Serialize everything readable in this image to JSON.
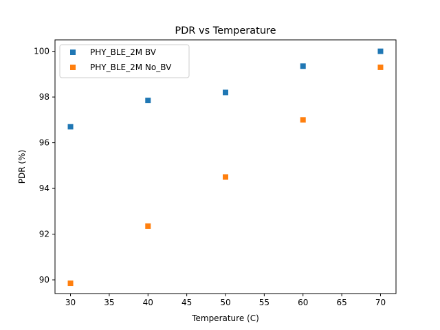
{
  "chart_data": {
    "type": "scatter",
    "title": "PDR vs Temperature",
    "xlabel": "Temperature (C)",
    "ylabel": "PDR (%)",
    "xlim": [
      28,
      72
    ],
    "ylim": [
      89.4,
      100.5
    ],
    "xticks": [
      30,
      35,
      40,
      45,
      50,
      55,
      60,
      65,
      70
    ],
    "yticks": [
      90,
      92,
      94,
      96,
      98,
      100
    ],
    "grid": false,
    "legend_position": "top-left",
    "marker": "square",
    "series": [
      {
        "name": "PHY_BLE_2M BV",
        "color": "#1f77b4",
        "x": [
          30,
          40,
          50,
          60,
          70
        ],
        "y": [
          96.7,
          97.85,
          98.2,
          99.35,
          100.0
        ]
      },
      {
        "name": "PHY_BLE_2M No_BV",
        "color": "#ff7f0e",
        "x": [
          30,
          40,
          50,
          60,
          70
        ],
        "y": [
          89.85,
          92.35,
          94.5,
          97.0,
          99.3
        ]
      }
    ]
  }
}
